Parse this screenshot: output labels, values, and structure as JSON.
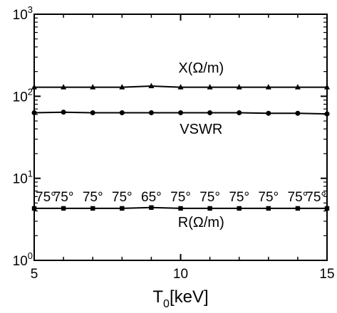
{
  "chart_data": {
    "type": "line",
    "xlabel": "T",
    "xlabel_subscript": "0",
    "xlabel_suffix": "[keV]",
    "xlim": [
      5,
      15
    ],
    "ylim": [
      1,
      1000
    ],
    "y_scale": "log",
    "x_ticks": [
      5,
      10,
      15
    ],
    "x_tick_labels": [
      "5",
      "10",
      "15"
    ],
    "y_ticks": [
      1,
      10,
      100,
      1000
    ],
    "y_tick_labels": [
      {
        "base": "10",
        "exp": "0"
      },
      {
        "base": "10",
        "exp": "1"
      },
      {
        "base": "10",
        "exp": "2"
      },
      {
        "base": "10",
        "exp": "3"
      }
    ],
    "grid": false,
    "x": [
      5,
      6,
      7,
      8,
      9,
      10,
      11,
      12,
      13,
      14,
      15
    ],
    "series": [
      {
        "name": "X(Ω/m)",
        "marker": "triangle",
        "values": [
          129,
          129,
          129,
          129,
          133,
          129,
          129,
          129,
          129,
          129,
          129
        ]
      },
      {
        "name": "VSWR",
        "marker": "circle",
        "values": [
          63,
          64,
          63,
          63,
          63,
          63,
          63,
          63,
          62,
          62,
          61
        ]
      },
      {
        "name": "R(Ω/m)",
        "marker": "square",
        "values": [
          4.3,
          4.3,
          4.3,
          4.3,
          4.4,
          4.3,
          4.3,
          4.3,
          4.3,
          4.3,
          4.3
        ]
      }
    ],
    "annotations": [
      {
        "text": "75°",
        "x": 5.0
      },
      {
        "text": "75°",
        "x": 6.0
      },
      {
        "text": "75°",
        "x": 7.0
      },
      {
        "text": "75°",
        "x": 8.0
      },
      {
        "text": "65°",
        "x": 9.0
      },
      {
        "text": "75°",
        "x": 10.0
      },
      {
        "text": "75°",
        "x": 11.0
      },
      {
        "text": "75°",
        "x": 12.0
      },
      {
        "text": "75°",
        "x": 13.0
      },
      {
        "text": "75°",
        "x": 14.0
      },
      {
        "text": "75°",
        "x": 15.0
      }
    ]
  }
}
